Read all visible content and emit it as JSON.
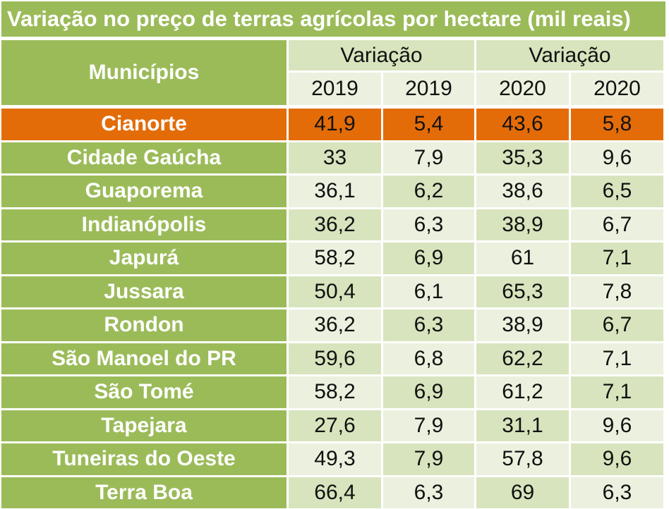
{
  "title": "Variação no preço de terras agrícolas por hectare (mil reais)",
  "colors": {
    "header_green": "#9bbb59",
    "light_green": "#d7e4bd",
    "pale_green": "#ebf1de",
    "highlight_orange": "#e36c09"
  },
  "chart_data": {
    "type": "table",
    "title": "Variação no preço de terras agrícolas por hectare (mil reais)",
    "row_header": "Municípios",
    "column_groups": [
      "Variação",
      "Variação"
    ],
    "columns": [
      "2019",
      "2019",
      "2020",
      "2020"
    ],
    "highlighted_row": "Cianorte",
    "rows": [
      {
        "municipio": "Cianorte",
        "values": [
          "41,9",
          "5,4",
          "43,6",
          "5,8"
        ]
      },
      {
        "municipio": "Cidade Gaúcha",
        "values": [
          "33",
          "7,9",
          "35,3",
          "9,6"
        ]
      },
      {
        "municipio": "Guaporema",
        "values": [
          "36,1",
          "6,2",
          "38,6",
          "6,5"
        ]
      },
      {
        "municipio": "Indianópolis",
        "values": [
          "36,2",
          "6,3",
          "38,9",
          "6,7"
        ]
      },
      {
        "municipio": "Japurá",
        "values": [
          "58,2",
          "6,9",
          "61",
          "7,1"
        ]
      },
      {
        "municipio": "Jussara",
        "values": [
          "50,4",
          "6,1",
          "65,3",
          "7,8"
        ]
      },
      {
        "municipio": "Rondon",
        "values": [
          "36,2",
          "6,3",
          "38,9",
          "6,7"
        ]
      },
      {
        "municipio": "São Manoel do PR",
        "values": [
          "59,6",
          "6,8",
          "62,2",
          "7,1"
        ]
      },
      {
        "municipio": "São Tomé",
        "values": [
          "58,2",
          "6,9",
          "61,2",
          "7,1"
        ]
      },
      {
        "municipio": "Tapejara",
        "values": [
          "27,6",
          "7,9",
          "31,1",
          "9,6"
        ]
      },
      {
        "municipio": "Tuneiras do Oeste",
        "values": [
          "49,3",
          "7,9",
          "57,8",
          "9,6"
        ]
      },
      {
        "municipio": "Terra Boa",
        "values": [
          "66,4",
          "6,3",
          "69",
          "6,3"
        ]
      }
    ]
  }
}
